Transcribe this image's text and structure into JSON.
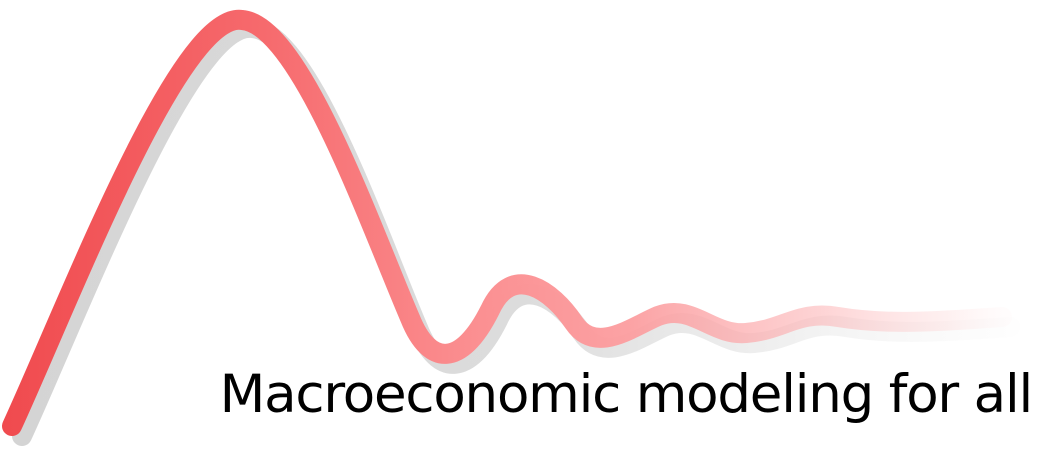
{
  "logo": {
    "tagline": "Macroeconomic modeling for all",
    "wave_color": "#f14f52",
    "wave_color_light": "#ff9a9c",
    "shadow_color": "#d9d9d9",
    "text_color": "#000000"
  }
}
